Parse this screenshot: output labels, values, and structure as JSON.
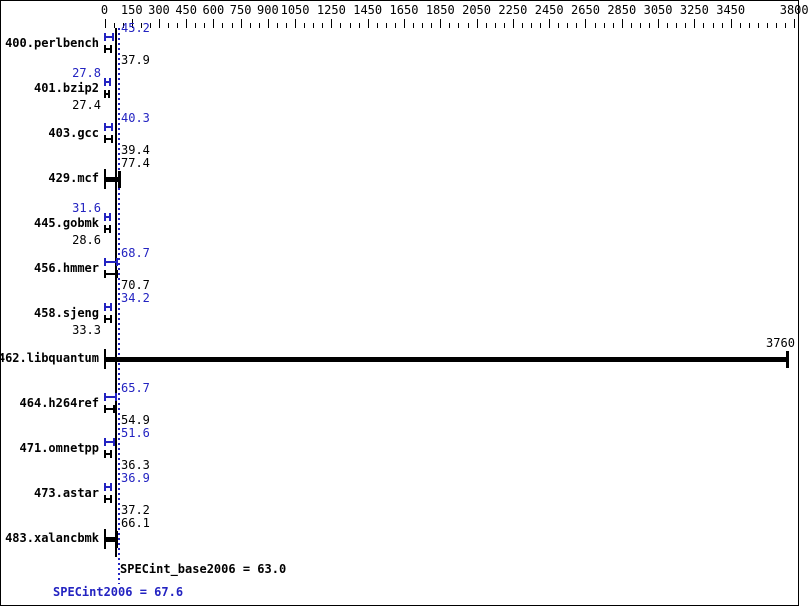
{
  "chart_data": {
    "type": "bar",
    "orientation": "horizontal",
    "title": "",
    "axis": {
      "position": "top",
      "min": 0,
      "max": 3800,
      "major_tick_values": [
        0,
        150,
        300,
        450,
        600,
        750,
        900,
        1050,
        1250,
        1450,
        1650,
        1850,
        2050,
        2250,
        2450,
        2650,
        2850,
        3050,
        3250,
        3450,
        3800
      ],
      "minor_tick_step": 50,
      "grid": false
    },
    "series": [
      {
        "name": "SPECint2006 (peak)",
        "key": "peak",
        "color": "#2323c1"
      },
      {
        "name": "SPECint_base2006 (base)",
        "key": "base",
        "color": "#000000"
      }
    ],
    "benchmarks": [
      {
        "name": "400.perlbench",
        "bars": [
          {
            "series": "peak",
            "value": 45.2,
            "label": "45.2",
            "side": "right"
          },
          {
            "series": "base",
            "value": 37.9,
            "label": "37.9",
            "side": "right"
          }
        ]
      },
      {
        "name": "401.bzip2",
        "bars": [
          {
            "series": "peak",
            "value": 27.8,
            "label": "27.8",
            "side": "left"
          },
          {
            "series": "base",
            "value": 27.4,
            "label": "27.4",
            "side": "left"
          }
        ]
      },
      {
        "name": "403.gcc",
        "bars": [
          {
            "series": "peak",
            "value": 40.3,
            "label": "40.3",
            "side": "right"
          },
          {
            "series": "base",
            "value": 39.4,
            "label": "39.4",
            "side": "right"
          }
        ]
      },
      {
        "name": "429.mcf",
        "bars": [
          {
            "series": "both",
            "value": 77.4,
            "label": "77.4",
            "side": "right"
          }
        ]
      },
      {
        "name": "445.gobmk",
        "bars": [
          {
            "series": "peak",
            "value": 31.6,
            "label": "31.6",
            "side": "left"
          },
          {
            "series": "base",
            "value": 28.6,
            "label": "28.6",
            "side": "left"
          }
        ]
      },
      {
        "name": "456.hmmer",
        "bars": [
          {
            "series": "peak",
            "value": 68.7,
            "label": "68.7",
            "side": "right"
          },
          {
            "series": "base",
            "value": 70.7,
            "label": "70.7",
            "side": "right"
          }
        ]
      },
      {
        "name": "458.sjeng",
        "bars": [
          {
            "series": "peak",
            "value": 34.2,
            "label": "34.2",
            "side": "right"
          },
          {
            "series": "base",
            "value": 33.3,
            "label": "33.3",
            "side": "left"
          }
        ]
      },
      {
        "name": "462.libquantum",
        "bars": [
          {
            "series": "both",
            "value": 3760,
            "label": "3760",
            "side": "end"
          }
        ]
      },
      {
        "name": "464.h264ref",
        "bars": [
          {
            "series": "peak",
            "value": 65.7,
            "label": "65.7",
            "side": "right"
          },
          {
            "series": "base",
            "value": 54.9,
            "label": "54.9",
            "side": "right"
          }
        ]
      },
      {
        "name": "471.omnetpp",
        "bars": [
          {
            "series": "peak",
            "value": 51.6,
            "label": "51.6",
            "side": "right"
          },
          {
            "series": "base",
            "value": 36.3,
            "label": "36.3",
            "side": "right"
          }
        ]
      },
      {
        "name": "473.astar",
        "bars": [
          {
            "series": "peak",
            "value": 36.9,
            "label": "36.9",
            "side": "right"
          },
          {
            "series": "base",
            "value": 37.2,
            "label": "37.2",
            "side": "right"
          }
        ]
      },
      {
        "name": "483.xalancbmk",
        "bars": [
          {
            "series": "both",
            "value": 66.1,
            "label": "66.1",
            "side": "right"
          }
        ]
      }
    ],
    "markers": [
      {
        "name": "base_mean",
        "value": 63.0,
        "style": "solid",
        "color": "#000000"
      },
      {
        "name": "peak_mean",
        "value": 67.6,
        "style": "dotted",
        "color": "#2323c1"
      }
    ],
    "colors": {
      "peak": "#2323c1",
      "base": "#000000",
      "frame": "#000000",
      "background": "#ffffff"
    }
  },
  "footer": {
    "base_text": "SPECint_base2006 = 63.0",
    "peak_text": "SPECint2006 = 67.6"
  }
}
